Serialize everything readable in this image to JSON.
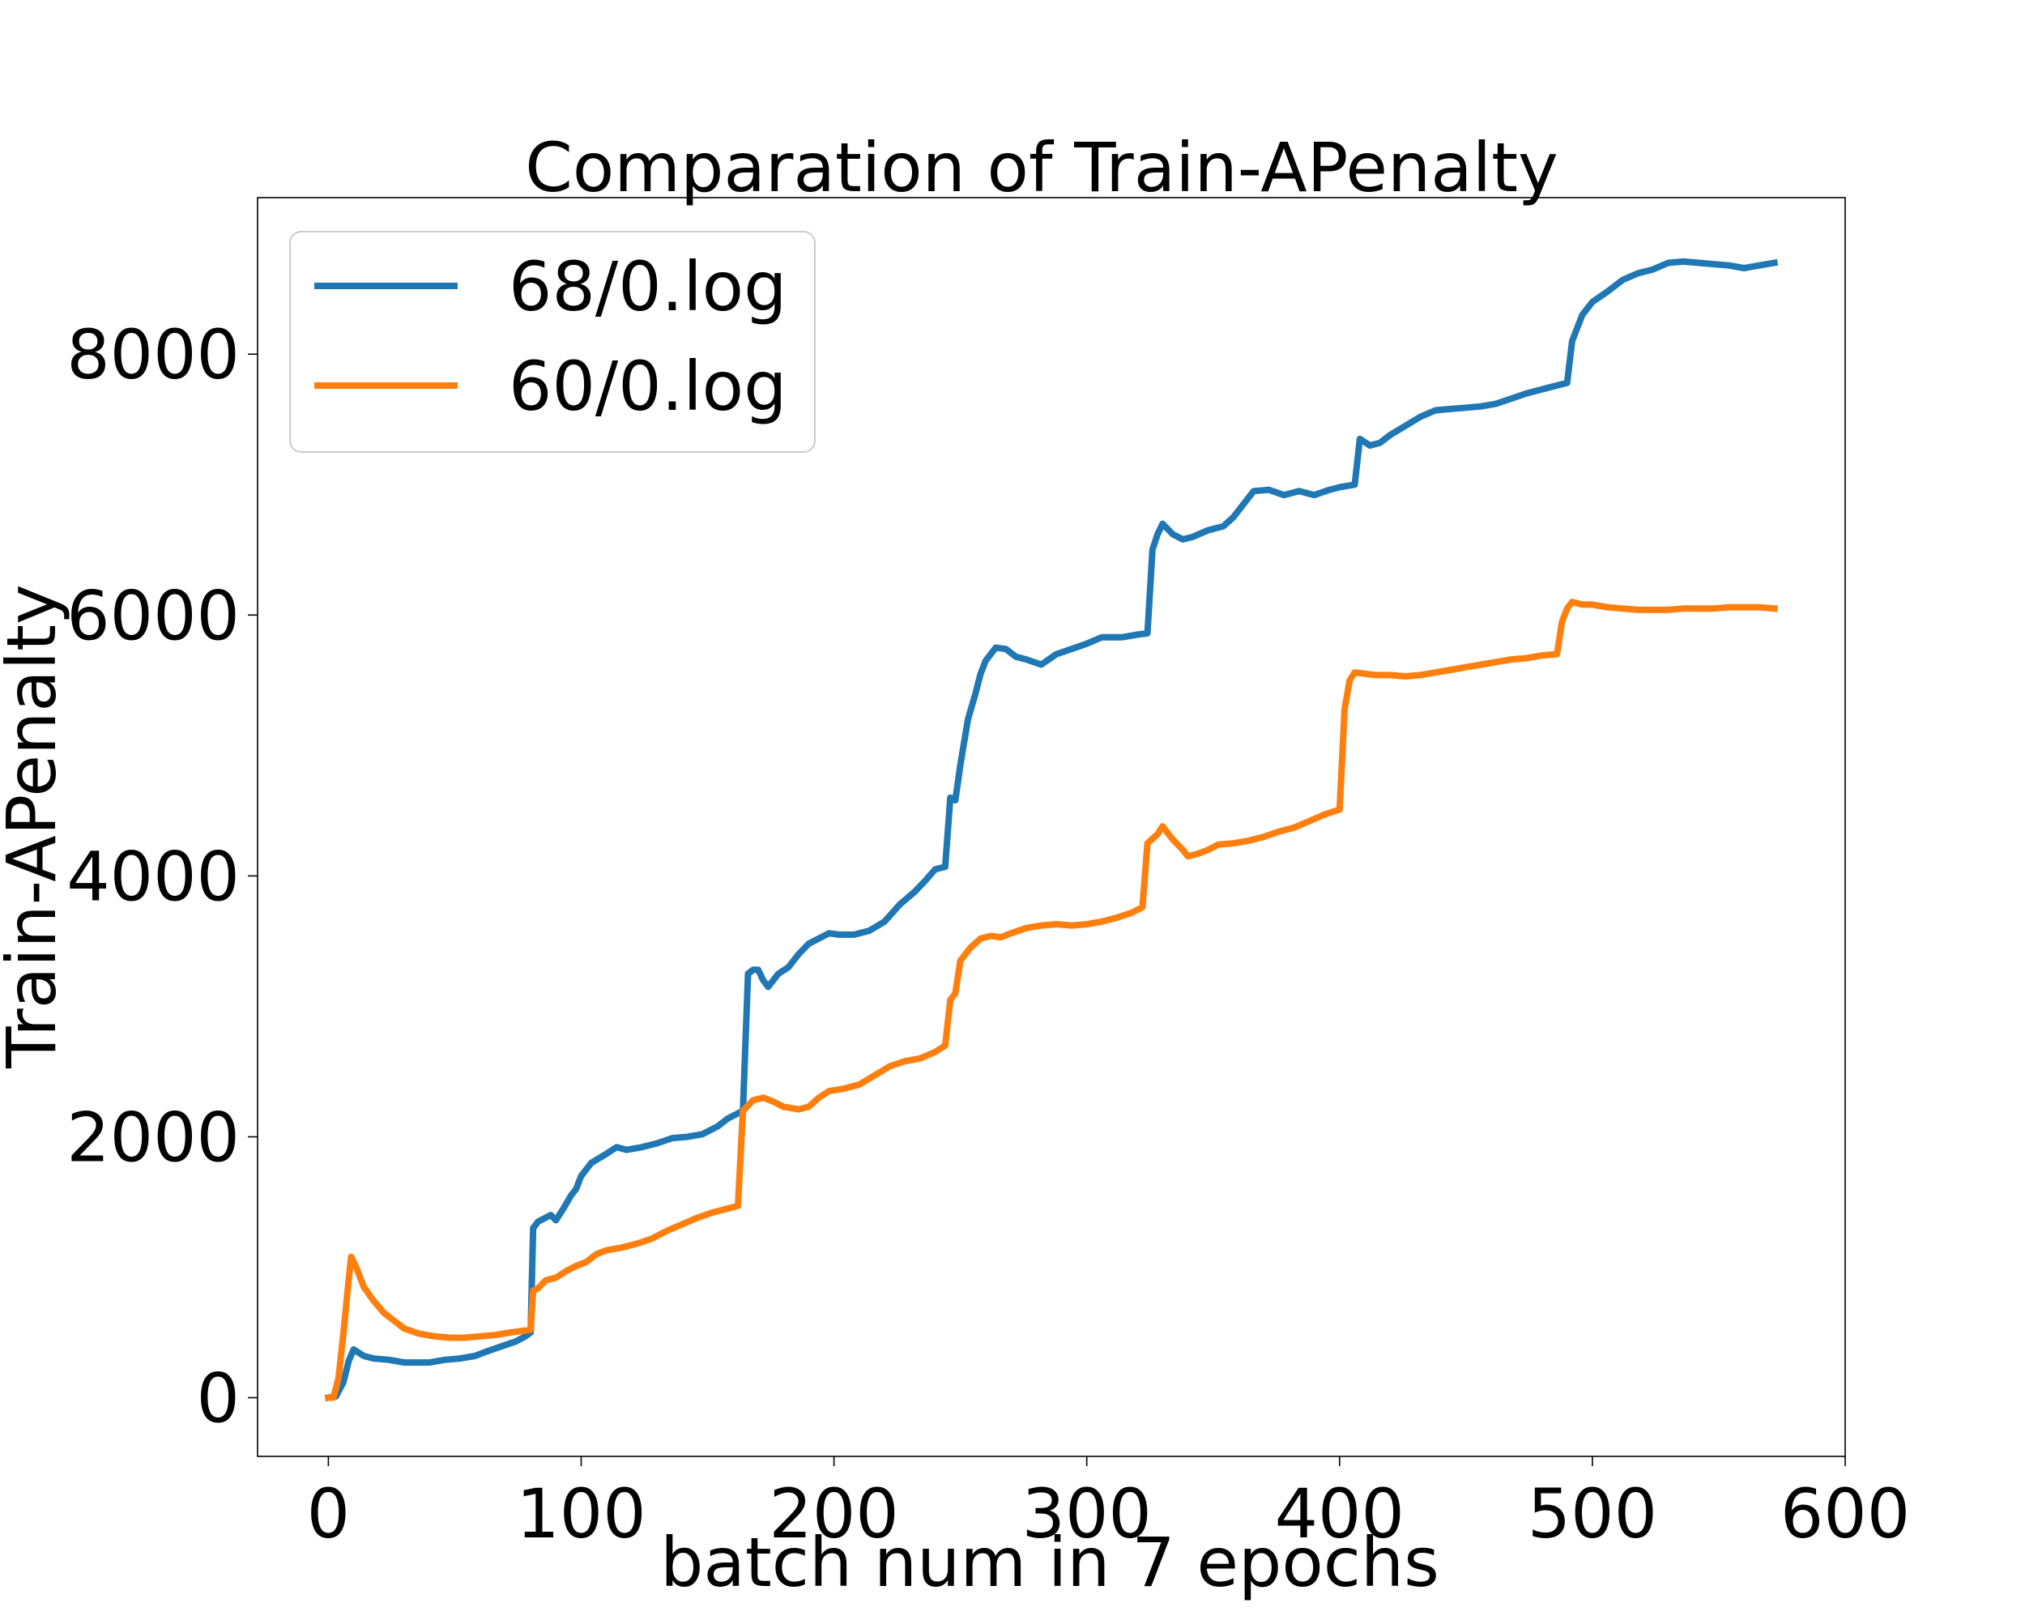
{
  "chart_data": {
    "type": "line",
    "title": "Comparation of Train-APenalty",
    "xlabel": "batch num in 7 epochs",
    "ylabel": "Train-APenalty",
    "xlim": [
      -28,
      600
    ],
    "ylim": [
      -450,
      9200
    ],
    "xticks": [
      0,
      100,
      200,
      300,
      400,
      500,
      600
    ],
    "yticks": [
      0,
      2000,
      4000,
      6000,
      8000
    ],
    "grid": false,
    "legend_position": "top-left",
    "series": [
      {
        "name": "68/0.log",
        "color": "#1f77b4",
        "points": [
          [
            0,
            0
          ],
          [
            3,
            10
          ],
          [
            6,
            120
          ],
          [
            8,
            280
          ],
          [
            10,
            370
          ],
          [
            14,
            320
          ],
          [
            18,
            300
          ],
          [
            24,
            290
          ],
          [
            30,
            270
          ],
          [
            40,
            270
          ],
          [
            46,
            290
          ],
          [
            52,
            300
          ],
          [
            58,
            320
          ],
          [
            62,
            350
          ],
          [
            68,
            390
          ],
          [
            74,
            430
          ],
          [
            78,
            470
          ],
          [
            80,
            500
          ],
          [
            81,
            1300
          ],
          [
            83,
            1350
          ],
          [
            86,
            1380
          ],
          [
            88,
            1400
          ],
          [
            90,
            1360
          ],
          [
            93,
            1450
          ],
          [
            96,
            1550
          ],
          [
            98,
            1600
          ],
          [
            100,
            1700
          ],
          [
            104,
            1800
          ],
          [
            110,
            1870
          ],
          [
            114,
            1920
          ],
          [
            118,
            1900
          ],
          [
            124,
            1920
          ],
          [
            130,
            1950
          ],
          [
            136,
            1990
          ],
          [
            142,
            2000
          ],
          [
            148,
            2020
          ],
          [
            154,
            2080
          ],
          [
            158,
            2140
          ],
          [
            162,
            2180
          ],
          [
            164,
            2200
          ],
          [
            166,
            3250
          ],
          [
            168,
            3280
          ],
          [
            170,
            3280
          ],
          [
            172,
            3200
          ],
          [
            174,
            3150
          ],
          [
            178,
            3250
          ],
          [
            182,
            3300
          ],
          [
            186,
            3400
          ],
          [
            190,
            3480
          ],
          [
            194,
            3520
          ],
          [
            198,
            3560
          ],
          [
            202,
            3550
          ],
          [
            208,
            3550
          ],
          [
            214,
            3580
          ],
          [
            220,
            3650
          ],
          [
            226,
            3780
          ],
          [
            232,
            3880
          ],
          [
            236,
            3960
          ],
          [
            240,
            4050
          ],
          [
            244,
            4070
          ],
          [
            246,
            4600
          ],
          [
            248,
            4580
          ],
          [
            250,
            4850
          ],
          [
            253,
            5200
          ],
          [
            256,
            5400
          ],
          [
            258,
            5550
          ],
          [
            260,
            5650
          ],
          [
            264,
            5750
          ],
          [
            268,
            5740
          ],
          [
            272,
            5680
          ],
          [
            276,
            5660
          ],
          [
            282,
            5620
          ],
          [
            288,
            5700
          ],
          [
            294,
            5740
          ],
          [
            300,
            5780
          ],
          [
            306,
            5830
          ],
          [
            314,
            5830
          ],
          [
            320,
            5850
          ],
          [
            324,
            5860
          ],
          [
            326,
            6500
          ],
          [
            328,
            6620
          ],
          [
            330,
            6700
          ],
          [
            334,
            6620
          ],
          [
            338,
            6580
          ],
          [
            342,
            6600
          ],
          [
            348,
            6650
          ],
          [
            354,
            6680
          ],
          [
            358,
            6750
          ],
          [
            362,
            6850
          ],
          [
            366,
            6950
          ],
          [
            372,
            6960
          ],
          [
            378,
            6920
          ],
          [
            384,
            6950
          ],
          [
            390,
            6920
          ],
          [
            396,
            6960
          ],
          [
            400,
            6980
          ],
          [
            406,
            7000
          ],
          [
            408,
            7350
          ],
          [
            412,
            7300
          ],
          [
            416,
            7320
          ],
          [
            420,
            7380
          ],
          [
            426,
            7450
          ],
          [
            432,
            7520
          ],
          [
            438,
            7570
          ],
          [
            444,
            7580
          ],
          [
            450,
            7590
          ],
          [
            456,
            7600
          ],
          [
            462,
            7620
          ],
          [
            468,
            7660
          ],
          [
            474,
            7700
          ],
          [
            480,
            7730
          ],
          [
            486,
            7760
          ],
          [
            490,
            7780
          ],
          [
            492,
            8100
          ],
          [
            496,
            8300
          ],
          [
            500,
            8400
          ],
          [
            506,
            8480
          ],
          [
            512,
            8570
          ],
          [
            518,
            8620
          ],
          [
            524,
            8650
          ],
          [
            530,
            8700
          ],
          [
            536,
            8710
          ],
          [
            542,
            8700
          ],
          [
            548,
            8690
          ],
          [
            554,
            8680
          ],
          [
            560,
            8660
          ],
          [
            566,
            8680
          ],
          [
            572,
            8700
          ]
        ]
      },
      {
        "name": "60/0.log",
        "color": "#ff7f0e",
        "points": [
          [
            0,
            0
          ],
          [
            2,
            0
          ],
          [
            4,
            150
          ],
          [
            6,
            500
          ],
          [
            8,
            900
          ],
          [
            9,
            1080
          ],
          [
            11,
            1000
          ],
          [
            14,
            850
          ],
          [
            18,
            740
          ],
          [
            22,
            650
          ],
          [
            26,
            590
          ],
          [
            30,
            530
          ],
          [
            36,
            490
          ],
          [
            42,
            470
          ],
          [
            48,
            460
          ],
          [
            54,
            460
          ],
          [
            60,
            470
          ],
          [
            66,
            480
          ],
          [
            72,
            500
          ],
          [
            76,
            510
          ],
          [
            80,
            520
          ],
          [
            81,
            820
          ],
          [
            83,
            840
          ],
          [
            86,
            900
          ],
          [
            90,
            920
          ],
          [
            94,
            970
          ],
          [
            98,
            1010
          ],
          [
            102,
            1040
          ],
          [
            106,
            1100
          ],
          [
            110,
            1130
          ],
          [
            116,
            1150
          ],
          [
            122,
            1180
          ],
          [
            128,
            1220
          ],
          [
            134,
            1280
          ],
          [
            140,
            1330
          ],
          [
            146,
            1380
          ],
          [
            152,
            1420
          ],
          [
            158,
            1450
          ],
          [
            162,
            1470
          ],
          [
            164,
            2200
          ],
          [
            168,
            2280
          ],
          [
            172,
            2300
          ],
          [
            176,
            2270
          ],
          [
            180,
            2230
          ],
          [
            186,
            2210
          ],
          [
            190,
            2230
          ],
          [
            194,
            2300
          ],
          [
            198,
            2350
          ],
          [
            204,
            2370
          ],
          [
            210,
            2400
          ],
          [
            216,
            2470
          ],
          [
            222,
            2540
          ],
          [
            228,
            2580
          ],
          [
            234,
            2600
          ],
          [
            240,
            2650
          ],
          [
            244,
            2700
          ],
          [
            246,
            3050
          ],
          [
            248,
            3100
          ],
          [
            250,
            3350
          ],
          [
            254,
            3450
          ],
          [
            258,
            3520
          ],
          [
            262,
            3540
          ],
          [
            266,
            3530
          ],
          [
            270,
            3560
          ],
          [
            276,
            3600
          ],
          [
            282,
            3620
          ],
          [
            288,
            3630
          ],
          [
            294,
            3620
          ],
          [
            300,
            3630
          ],
          [
            306,
            3650
          ],
          [
            312,
            3680
          ],
          [
            318,
            3720
          ],
          [
            322,
            3760
          ],
          [
            324,
            4250
          ],
          [
            328,
            4320
          ],
          [
            330,
            4380
          ],
          [
            334,
            4280
          ],
          [
            338,
            4200
          ],
          [
            340,
            4150
          ],
          [
            344,
            4170
          ],
          [
            348,
            4200
          ],
          [
            352,
            4240
          ],
          [
            358,
            4250
          ],
          [
            364,
            4270
          ],
          [
            370,
            4300
          ],
          [
            376,
            4340
          ],
          [
            382,
            4370
          ],
          [
            388,
            4420
          ],
          [
            394,
            4470
          ],
          [
            400,
            4510
          ],
          [
            402,
            5280
          ],
          [
            404,
            5500
          ],
          [
            406,
            5560
          ],
          [
            410,
            5550
          ],
          [
            414,
            5540
          ],
          [
            420,
            5540
          ],
          [
            426,
            5530
          ],
          [
            432,
            5540
          ],
          [
            438,
            5560
          ],
          [
            444,
            5580
          ],
          [
            450,
            5600
          ],
          [
            456,
            5620
          ],
          [
            462,
            5640
          ],
          [
            468,
            5660
          ],
          [
            474,
            5670
          ],
          [
            480,
            5690
          ],
          [
            486,
            5700
          ],
          [
            488,
            5950
          ],
          [
            490,
            6050
          ],
          [
            492,
            6100
          ],
          [
            496,
            6080
          ],
          [
            500,
            6080
          ],
          [
            506,
            6060
          ],
          [
            512,
            6050
          ],
          [
            518,
            6040
          ],
          [
            524,
            6040
          ],
          [
            530,
            6040
          ],
          [
            536,
            6050
          ],
          [
            542,
            6050
          ],
          [
            548,
            6050
          ],
          [
            554,
            6060
          ],
          [
            560,
            6060
          ],
          [
            566,
            6060
          ],
          [
            572,
            6050
          ]
        ]
      }
    ]
  }
}
